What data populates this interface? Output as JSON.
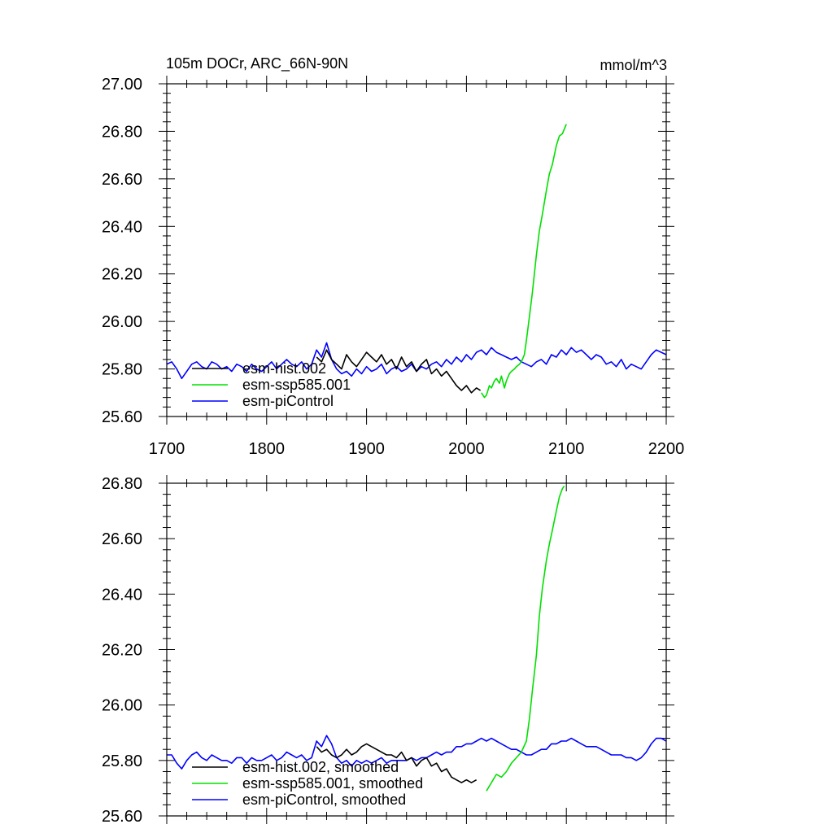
{
  "chart_data": [
    {
      "type": "line",
      "title": "105m DOCr, ARC_66N-90N",
      "units": "mmol/m^3",
      "xlim": [
        1700,
        2200
      ],
      "ylim": [
        25.6,
        27.0
      ],
      "xticks": [
        1700,
        1800,
        1900,
        2000,
        2100,
        2200
      ],
      "xtick_labels": [
        "1700",
        "1800",
        "1900",
        "2000",
        "2100",
        "2200"
      ],
      "yticks": [
        25.6,
        25.8,
        26.0,
        26.2,
        26.4,
        26.6,
        26.8,
        27.0
      ],
      "ytick_labels": [
        "25.60",
        "25.80",
        "26.00",
        "26.20",
        "26.40",
        "26.60",
        "26.80",
        "27.00"
      ],
      "grid": false,
      "legend_position": "bottom-left",
      "series": [
        {
          "name": "esm-hist.002",
          "color": "#000000",
          "x": [
            1850,
            1855,
            1860,
            1865,
            1870,
            1875,
            1880,
            1885,
            1890,
            1895,
            1900,
            1905,
            1910,
            1915,
            1920,
            1925,
            1930,
            1935,
            1940,
            1945,
            1950,
            1955,
            1960,
            1965,
            1970,
            1975,
            1980,
            1985,
            1990,
            1995,
            2000,
            2005,
            2010,
            2014
          ],
          "values": [
            25.85,
            25.83,
            25.88,
            25.84,
            25.82,
            25.8,
            25.86,
            25.83,
            25.81,
            25.84,
            25.87,
            25.85,
            25.83,
            25.86,
            25.82,
            25.84,
            25.8,
            25.85,
            25.81,
            25.83,
            25.79,
            25.82,
            25.84,
            25.78,
            25.8,
            25.77,
            25.79,
            25.76,
            25.73,
            25.71,
            25.73,
            25.7,
            25.72,
            25.71
          ]
        },
        {
          "name": "esm-ssp585.001",
          "color": "#00e000",
          "x": [
            2015,
            2018,
            2020,
            2023,
            2025,
            2028,
            2030,
            2033,
            2035,
            2038,
            2040,
            2043,
            2045,
            2048,
            2050,
            2053,
            2055,
            2058,
            2060,
            2063,
            2066,
            2070,
            2073,
            2076,
            2080,
            2083,
            2086,
            2090,
            2093,
            2096,
            2100
          ],
          "values": [
            25.7,
            25.68,
            25.69,
            25.73,
            25.72,
            25.75,
            25.76,
            25.74,
            25.77,
            25.72,
            25.75,
            25.78,
            25.79,
            25.8,
            25.81,
            25.82,
            25.83,
            25.86,
            25.92,
            26.02,
            26.12,
            26.28,
            26.38,
            26.45,
            26.55,
            26.62,
            26.66,
            26.74,
            26.78,
            26.79,
            26.83
          ]
        },
        {
          "name": "esm-piControl",
          "color": "#0000ff",
          "x": [
            1700,
            1705,
            1710,
            1715,
            1720,
            1725,
            1730,
            1735,
            1740,
            1745,
            1750,
            1755,
            1760,
            1765,
            1770,
            1775,
            1780,
            1785,
            1790,
            1795,
            1800,
            1805,
            1810,
            1815,
            1820,
            1825,
            1830,
            1835,
            1840,
            1845,
            1850,
            1855,
            1860,
            1865,
            1870,
            1875,
            1880,
            1885,
            1890,
            1895,
            1900,
            1905,
            1910,
            1915,
            1920,
            1925,
            1930,
            1935,
            1940,
            1945,
            1950,
            1955,
            1960,
            1965,
            1970,
            1975,
            1980,
            1985,
            1990,
            1995,
            2000,
            2005,
            2010,
            2015,
            2020,
            2025,
            2030,
            2035,
            2040,
            2045,
            2050,
            2055,
            2060,
            2065,
            2070,
            2075,
            2080,
            2085,
            2090,
            2095,
            2100,
            2105,
            2110,
            2115,
            2120,
            2125,
            2130,
            2135,
            2140,
            2145,
            2150,
            2155,
            2160,
            2165,
            2170,
            2175,
            2180,
            2185,
            2190,
            2195,
            2200
          ],
          "values": [
            25.82,
            25.83,
            25.8,
            25.76,
            25.79,
            25.82,
            25.83,
            25.81,
            25.8,
            25.83,
            25.82,
            25.8,
            25.81,
            25.79,
            25.82,
            25.81,
            25.79,
            25.82,
            25.8,
            25.79,
            25.81,
            25.83,
            25.8,
            25.82,
            25.84,
            25.82,
            25.81,
            25.83,
            25.8,
            25.82,
            25.88,
            25.85,
            25.91,
            25.84,
            25.8,
            25.78,
            25.79,
            25.77,
            25.8,
            25.78,
            25.81,
            25.79,
            25.8,
            25.82,
            25.78,
            25.8,
            25.81,
            25.79,
            25.8,
            25.82,
            25.79,
            25.81,
            25.8,
            25.82,
            25.83,
            25.81,
            25.84,
            25.82,
            25.85,
            25.83,
            25.86,
            25.84,
            25.87,
            25.88,
            25.86,
            25.89,
            25.87,
            25.86,
            25.85,
            25.84,
            25.85,
            25.83,
            25.82,
            25.81,
            25.83,
            25.84,
            25.82,
            25.86,
            25.85,
            25.88,
            25.86,
            25.89,
            25.87,
            25.88,
            25.86,
            25.84,
            25.86,
            25.85,
            25.82,
            25.83,
            25.81,
            25.84,
            25.8,
            25.82,
            25.81,
            25.8,
            25.83,
            25.86,
            25.88,
            25.87,
            25.86
          ]
        }
      ]
    },
    {
      "type": "line",
      "title": "",
      "xlim": [
        1700,
        2200
      ],
      "ylim": [
        25.6,
        26.8
      ],
      "xticks": [
        1700,
        1800,
        1900,
        2000,
        2100,
        2200
      ],
      "yticks": [
        25.6,
        25.8,
        26.0,
        26.2,
        26.4,
        26.6,
        26.8
      ],
      "ytick_labels": [
        "25.60",
        "25.80",
        "26.00",
        "26.20",
        "26.40",
        "26.60",
        "26.80"
      ],
      "grid": false,
      "legend_position": "bottom-left",
      "series": [
        {
          "name": "esm-hist.002, smoothed",
          "color": "#000000",
          "x": [
            1850,
            1855,
            1860,
            1865,
            1870,
            1875,
            1880,
            1885,
            1890,
            1895,
            1900,
            1905,
            1910,
            1915,
            1920,
            1925,
            1930,
            1935,
            1940,
            1945,
            1950,
            1955,
            1960,
            1965,
            1970,
            1975,
            1980,
            1985,
            1990,
            1995,
            2000,
            2005,
            2010
          ],
          "values": [
            25.85,
            25.83,
            25.84,
            25.82,
            25.81,
            25.82,
            25.84,
            25.82,
            25.83,
            25.85,
            25.86,
            25.85,
            25.84,
            25.83,
            25.82,
            25.82,
            25.81,
            25.83,
            25.8,
            25.81,
            25.78,
            25.8,
            25.81,
            25.78,
            25.79,
            25.76,
            25.77,
            25.74,
            25.73,
            25.72,
            25.73,
            25.72,
            25.73
          ]
        },
        {
          "name": "esm-ssp585.001, smoothed",
          "color": "#00e000",
          "x": [
            2020,
            2025,
            2030,
            2035,
            2040,
            2045,
            2050,
            2055,
            2060,
            2063,
            2066,
            2070,
            2073,
            2076,
            2080,
            2083,
            2086,
            2090,
            2093,
            2096,
            2098
          ],
          "values": [
            25.69,
            25.72,
            25.75,
            25.74,
            25.76,
            25.79,
            25.81,
            25.83,
            25.87,
            25.95,
            26.05,
            26.18,
            26.32,
            26.42,
            26.52,
            26.58,
            26.63,
            26.7,
            26.75,
            26.78,
            26.79
          ]
        },
        {
          "name": "esm-piControl, smoothed",
          "color": "#0000ff",
          "x": [
            1700,
            1705,
            1710,
            1715,
            1720,
            1725,
            1730,
            1735,
            1740,
            1745,
            1750,
            1755,
            1760,
            1765,
            1770,
            1775,
            1780,
            1785,
            1790,
            1795,
            1800,
            1805,
            1810,
            1815,
            1820,
            1825,
            1830,
            1835,
            1840,
            1845,
            1850,
            1855,
            1860,
            1865,
            1870,
            1875,
            1880,
            1885,
            1890,
            1895,
            1900,
            1905,
            1910,
            1915,
            1920,
            1925,
            1930,
            1935,
            1940,
            1945,
            1950,
            1955,
            1960,
            1965,
            1970,
            1975,
            1980,
            1985,
            1990,
            1995,
            2000,
            2005,
            2010,
            2015,
            2020,
            2025,
            2030,
            2035,
            2040,
            2045,
            2050,
            2055,
            2060,
            2065,
            2070,
            2075,
            2080,
            2085,
            2090,
            2095,
            2100,
            2105,
            2110,
            2115,
            2120,
            2125,
            2130,
            2135,
            2140,
            2145,
            2150,
            2155,
            2160,
            2165,
            2170,
            2175,
            2180,
            2185,
            2190,
            2195,
            2200
          ],
          "values": [
            25.82,
            25.82,
            25.79,
            25.77,
            25.8,
            25.82,
            25.83,
            25.81,
            25.8,
            25.82,
            25.81,
            25.8,
            25.8,
            25.79,
            25.81,
            25.81,
            25.79,
            25.81,
            25.8,
            25.8,
            25.81,
            25.82,
            25.8,
            25.81,
            25.83,
            25.82,
            25.81,
            25.82,
            25.8,
            25.81,
            25.87,
            25.85,
            25.89,
            25.86,
            25.81,
            25.79,
            25.8,
            25.78,
            25.8,
            25.79,
            25.8,
            25.79,
            25.8,
            25.81,
            25.79,
            25.8,
            25.8,
            25.8,
            25.8,
            25.81,
            25.8,
            25.81,
            25.81,
            25.82,
            25.83,
            25.82,
            25.83,
            25.83,
            25.85,
            25.85,
            25.86,
            25.86,
            25.87,
            25.88,
            25.87,
            25.88,
            25.87,
            25.86,
            25.85,
            25.84,
            25.84,
            25.83,
            25.82,
            25.82,
            25.83,
            25.84,
            25.84,
            25.86,
            25.86,
            25.87,
            25.87,
            25.88,
            25.87,
            25.86,
            25.85,
            25.85,
            25.85,
            25.84,
            25.83,
            25.82,
            25.82,
            25.82,
            25.81,
            25.81,
            25.8,
            25.81,
            25.83,
            25.86,
            25.88,
            25.88,
            25.87
          ]
        }
      ]
    }
  ]
}
